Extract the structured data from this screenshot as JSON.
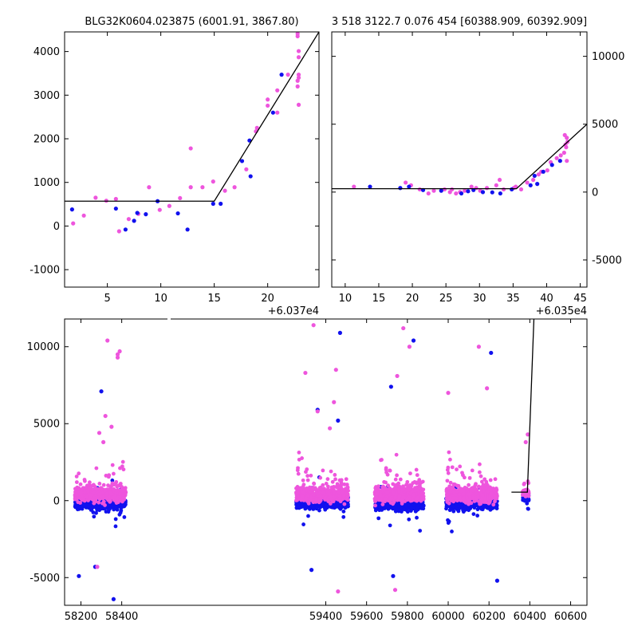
{
  "chart_data": [
    {
      "type": "scatter",
      "title": "BLG32K0604.023875 (6001.91, 3867.80)",
      "offset_label": "+6.037e4",
      "xlim": [
        1,
        24.8
      ],
      "ylim": [
        -1400,
        4450
      ],
      "xticks": [
        5,
        10,
        15,
        20
      ],
      "yticks": [
        -1000,
        0,
        1000,
        2000,
        3000,
        4000
      ],
      "colors": {
        "blue": "#1111ee",
        "pink": "#ee55dd",
        "line": "#000000"
      },
      "model_line": {
        "x": [
          1,
          15,
          24.8
        ],
        "y": [
          570,
          570,
          4450
        ]
      },
      "series": [
        {
          "color": "blue",
          "points": [
            [
              1.7,
              380
            ],
            [
              5.8,
              400
            ],
            [
              6.7,
              -80
            ],
            [
              7.5,
              120
            ],
            [
              7.8,
              300
            ],
            [
              8.6,
              270
            ],
            [
              9.7,
              570
            ],
            [
              11.6,
              290
            ],
            [
              12.5,
              -80
            ],
            [
              14.9,
              510
            ],
            [
              15.6,
              510
            ],
            [
              17.6,
              1490
            ],
            [
              18.4,
              1140
            ],
            [
              18.3,
              1960
            ],
            [
              20.5,
              2600
            ],
            [
              21.3,
              3470
            ]
          ]
        },
        {
          "color": "pink",
          "points": [
            [
              1.8,
              60
            ],
            [
              2.8,
              240
            ],
            [
              3.9,
              650
            ],
            [
              4.9,
              580
            ],
            [
              5.8,
              620
            ],
            [
              6.1,
              -120
            ],
            [
              7.0,
              160
            ],
            [
              7.9,
              280
            ],
            [
              8.9,
              890
            ],
            [
              9.9,
              370
            ],
            [
              10.8,
              460
            ],
            [
              11.8,
              640
            ],
            [
              12.8,
              1780
            ],
            [
              12.8,
              890
            ],
            [
              13.9,
              890
            ],
            [
              14.9,
              1020
            ],
            [
              16.0,
              810
            ],
            [
              16.9,
              890
            ],
            [
              18.0,
              1300
            ],
            [
              18.9,
              2170
            ],
            [
              19.0,
              2250
            ],
            [
              20.0,
              2760
            ],
            [
              20.0,
              2900
            ],
            [
              20.9,
              3110
            ],
            [
              20.9,
              2600
            ],
            [
              21.9,
              3470
            ],
            [
              22.8,
              3200
            ],
            [
              22.8,
              3330
            ],
            [
              22.9,
              3400
            ],
            [
              22.9,
              3470
            ],
            [
              22.9,
              3870
            ],
            [
              22.9,
              4010
            ],
            [
              22.8,
              4350
            ],
            [
              22.8,
              4410
            ],
            [
              22.9,
              2780
            ]
          ]
        }
      ]
    },
    {
      "type": "scatter",
      "title": "3 518 3122.7 0.076 454 [60388.909, 60392.909]",
      "offset_label": "+6.035e4",
      "xlim": [
        8,
        46
      ],
      "ylim": [
        -7000,
        11800
      ],
      "xticks": [
        10,
        15,
        20,
        25,
        30,
        35,
        40,
        45
      ],
      "yticks": [
        -5000,
        0,
        5000,
        10000
      ],
      "colors": {
        "blue": "#1111ee",
        "pink": "#ee55dd",
        "line": "#000000"
      },
      "model_line": {
        "x": [
          8,
          35.5,
          46
        ],
        "y": [
          250,
          250,
          5000
        ]
      },
      "series": [
        {
          "color": "blue",
          "points": [
            [
              13.7,
              400
            ],
            [
              18.2,
              300
            ],
            [
              19.5,
              400
            ],
            [
              21.6,
              150
            ],
            [
              24.3,
              100
            ],
            [
              27.3,
              -100
            ],
            [
              28.3,
              60
            ],
            [
              29.1,
              150
            ],
            [
              30.5,
              0
            ],
            [
              31.9,
              -20
            ],
            [
              33.1,
              -100
            ],
            [
              34.8,
              200
            ],
            [
              37.6,
              500
            ],
            [
              38.2,
              1200
            ],
            [
              38.6,
              600
            ],
            [
              39.5,
              1500
            ],
            [
              40.8,
              2000
            ],
            [
              42.0,
              2300
            ]
          ]
        },
        {
          "color": "pink",
          "points": [
            [
              11.3,
              400
            ],
            [
              19.0,
              700
            ],
            [
              19.8,
              500
            ],
            [
              21.1,
              200
            ],
            [
              22.4,
              -100
            ],
            [
              23.2,
              100
            ],
            [
              24.8,
              200
            ],
            [
              25.6,
              0
            ],
            [
              25.9,
              200
            ],
            [
              26.5,
              -100
            ],
            [
              27.1,
              0
            ],
            [
              27.8,
              100
            ],
            [
              28.8,
              400
            ],
            [
              29.5,
              300
            ],
            [
              30.1,
              100
            ],
            [
              31.1,
              300
            ],
            [
              32.5,
              500
            ],
            [
              33.0,
              900
            ],
            [
              33.6,
              200
            ],
            [
              35.1,
              300
            ],
            [
              35.4,
              400
            ],
            [
              36.2,
              200
            ],
            [
              37.1,
              700
            ],
            [
              38.0,
              900
            ],
            [
              38.8,
              1300
            ],
            [
              39.2,
              1500
            ],
            [
              40.1,
              1600
            ],
            [
              40.6,
              2200
            ],
            [
              41.5,
              2500
            ],
            [
              42.1,
              2700
            ],
            [
              42.6,
              2900
            ],
            [
              42.8,
              3500
            ],
            [
              42.9,
              3300
            ],
            [
              43.0,
              4000
            ],
            [
              43.0,
              2300
            ],
            [
              43.1,
              3700
            ],
            [
              42.7,
              4200
            ]
          ]
        }
      ]
    },
    {
      "type": "scatter",
      "title": "",
      "xlim": [
        58120,
        60680
      ],
      "ylim": [
        -6800,
        11800
      ],
      "xticks": [
        58200,
        58400,
        59400,
        59600,
        59800,
        60000,
        60200,
        60400,
        60600
      ],
      "yticks": [
        -5000,
        0,
        5000,
        10000
      ],
      "colors": {
        "blue": "#1111ee",
        "pink": "#ee55dd",
        "line": "#000000"
      },
      "model_line": {
        "x": [
          60310,
          60388,
          60420
        ],
        "y": [
          550,
          550,
          11800
        ]
      },
      "outlier_points": {
        "pink": [
          [
            58290,
            4400
          ],
          [
            58310,
            3800
          ],
          [
            58320,
            5500
          ],
          [
            58330,
            10400
          ],
          [
            58350,
            4800
          ],
          [
            58380,
            9500
          ],
          [
            58390,
            9700
          ],
          [
            58380,
            9300
          ],
          [
            59300,
            8300
          ],
          [
            59340,
            11400
          ],
          [
            59360,
            5800
          ],
          [
            59420,
            4700
          ],
          [
            59440,
            6400
          ],
          [
            59450,
            8500
          ],
          [
            59750,
            8100
          ],
          [
            59780,
            11200
          ],
          [
            59810,
            10000
          ],
          [
            59740,
            -5800
          ],
          [
            60000,
            7000
          ],
          [
            60150,
            10000
          ],
          [
            60190,
            7300
          ],
          [
            59460,
            -5900
          ],
          [
            58280,
            -4300
          ],
          [
            60380,
            3800
          ],
          [
            60390,
            4300
          ]
        ],
        "blue": [
          [
            58190,
            -4900
          ],
          [
            58270,
            -4300
          ],
          [
            58300,
            7100
          ],
          [
            58360,
            -6400
          ],
          [
            59360,
            5900
          ],
          [
            59330,
            -4500
          ],
          [
            59460,
            5200
          ],
          [
            59470,
            10900
          ],
          [
            59720,
            7400
          ],
          [
            59730,
            -4900
          ],
          [
            59830,
            10400
          ],
          [
            60210,
            9600
          ],
          [
            60240,
            -5200
          ]
        ]
      },
      "seasons": [
        {
          "x_range": [
            58170,
            58420
          ],
          "center": 400,
          "pink_spread": 900,
          "blue_center": -200,
          "n": 320
        },
        {
          "x_range": [
            59255,
            59510
          ],
          "center": 400,
          "pink_spread": 900,
          "blue_center": -150,
          "n": 340
        },
        {
          "x_range": [
            59640,
            59880
          ],
          "center": 400,
          "pink_spread": 1000,
          "blue_center": -250,
          "n": 340
        },
        {
          "x_range": [
            59990,
            60240
          ],
          "center": 400,
          "pink_spread": 950,
          "blue_center": -200,
          "n": 340
        },
        {
          "x_range": [
            60365,
            60395
          ],
          "center": 500,
          "pink_spread": 400,
          "blue_center": 200,
          "n": 40
        }
      ]
    }
  ]
}
